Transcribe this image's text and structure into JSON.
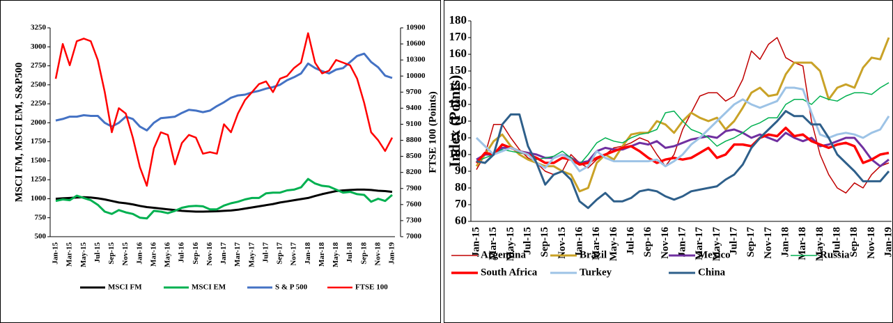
{
  "chart_data": [
    {
      "type": "line",
      "y_label": "MSCI FM, MSCI EM, S&P500",
      "y2_label": "FTSE 100 (Points)",
      "categories": [
        "Jan-15",
        null,
        "Mar-15",
        null,
        "May-15",
        null,
        "Jul-15",
        null,
        "Sep-15",
        null,
        "Nov-15",
        null,
        "Jan-16",
        null,
        "Mar-16",
        null,
        "May-16",
        null,
        "Jul-16",
        null,
        "Sep-16",
        null,
        "Nov-16",
        null,
        "Jan-17",
        null,
        "Mar-17",
        null,
        "May-17",
        null,
        "Jul-17",
        null,
        "Sep-17",
        null,
        "Nov-17",
        null,
        "Jan-18",
        null,
        "Mar-18",
        null,
        "May-18",
        null,
        "Jul-18",
        null,
        "Sep-18",
        null,
        "Nov-18",
        null,
        "Jan-19"
      ],
      "ylim": [
        500,
        3250
      ],
      "yticks": [
        500,
        750,
        1000,
        1250,
        1500,
        1750,
        2000,
        2250,
        2500,
        2750,
        3000,
        3250
      ],
      "y2lim": [
        7000,
        10900
      ],
      "y2ticks": [
        7000,
        7300,
        7600,
        7900,
        8200,
        8500,
        8800,
        9100,
        9400,
        9700,
        10000,
        10300,
        10600,
        10900
      ],
      "legend": "bottom",
      "series": [
        {
          "name": "MSCI FM",
          "color": "#000000",
          "values": [
            1000,
            1005,
            1010,
            1015,
            1020,
            1015,
            1005,
            990,
            970,
            950,
            940,
            925,
            905,
            890,
            880,
            870,
            860,
            850,
            840,
            835,
            830,
            830,
            832,
            835,
            840,
            845,
            855,
            870,
            885,
            900,
            915,
            930,
            950,
            965,
            980,
            995,
            1010,
            1035,
            1060,
            1080,
            1100,
            1110,
            1115,
            1120,
            1120,
            1115,
            1105,
            1100,
            1090
          ]
        },
        {
          "name": "MSCI EM",
          "color": "#00b050",
          "values": [
            970,
            990,
            980,
            1040,
            1010,
            980,
            920,
            830,
            800,
            850,
            820,
            800,
            750,
            740,
            840,
            830,
            810,
            840,
            880,
            900,
            905,
            900,
            860,
            860,
            910,
            940,
            960,
            990,
            1010,
            1010,
            1070,
            1080,
            1080,
            1110,
            1120,
            1150,
            1260,
            1200,
            1170,
            1160,
            1120,
            1080,
            1090,
            1060,
            1050,
            960,
            1000,
            970,
            1050
          ]
        },
        {
          "name": "S & P 500",
          "color": "#4472c4",
          "values": [
            2030,
            2050,
            2080,
            2080,
            2100,
            2090,
            2090,
            2000,
            1950,
            2000,
            2080,
            2050,
            1950,
            1900,
            2000,
            2060,
            2070,
            2080,
            2130,
            2170,
            2160,
            2140,
            2160,
            2220,
            2270,
            2330,
            2360,
            2370,
            2400,
            2420,
            2450,
            2470,
            2500,
            2560,
            2600,
            2650,
            2780,
            2720,
            2680,
            2650,
            2700,
            2720,
            2800,
            2880,
            2910,
            2800,
            2730,
            2620,
            2590
          ]
        },
        {
          "name": "FTSE 100",
          "color": "#ff0000",
          "axis": "y2",
          "values": [
            9950,
            10600,
            10200,
            10650,
            10700,
            10650,
            10300,
            9700,
            8950,
            9400,
            9300,
            8850,
            8300,
            7950,
            8650,
            8950,
            8900,
            8350,
            8750,
            8900,
            8850,
            8550,
            8580,
            8550,
            9100,
            8950,
            9300,
            9550,
            9700,
            9850,
            9900,
            9700,
            9950,
            10000,
            10150,
            10250,
            10800,
            10250,
            10050,
            10100,
            10300,
            10250,
            10200,
            9950,
            9500,
            8950,
            8800,
            8600,
            8850
          ]
        }
      ]
    },
    {
      "type": "line",
      "y_label": "Index (Points)",
      "categories": [
        "Jan-15",
        null,
        "Mar-15",
        null,
        "May-15",
        null,
        "Jul-15",
        null,
        "Sep-15",
        null,
        "Nov-15",
        null,
        "Jan-16",
        null,
        "Mar-16",
        null,
        "May-16",
        null,
        "Jul-16",
        null,
        "Sep-16",
        null,
        "Nov-16",
        null,
        "Jan-17",
        null,
        "Mar-17",
        null,
        "May-17",
        null,
        "Jul-17",
        null,
        "Sep-17",
        null,
        "Nov-17",
        null,
        "Jan-18",
        null,
        "Mar-18",
        null,
        "May-18",
        null,
        "Jul-18",
        null,
        "Sep-18",
        null,
        "Nov-18",
        null,
        "Jan-19"
      ],
      "ylim": [
        60,
        180
      ],
      "yticks": [
        60,
        70,
        80,
        90,
        100,
        110,
        120,
        130,
        140,
        150,
        160,
        170,
        180
      ],
      "legend": "bottom",
      "series": [
        {
          "name": "Argentina",
          "color": "#c00000",
          "values": [
            91,
            100,
            118,
            118,
            110,
            103,
            98,
            95,
            90,
            88,
            90,
            100,
            95,
            92,
            97,
            100,
            104,
            105,
            107,
            110,
            108,
            100,
            93,
            100,
            115,
            125,
            135,
            137,
            137,
            132,
            135,
            145,
            162,
            157,
            166,
            170,
            158,
            155,
            153,
            120,
            100,
            88,
            80,
            77,
            83,
            80,
            88,
            93,
            95
          ]
        },
        {
          "name": "Brazil",
          "color": "#c9a227",
          "values": [
            93,
            100,
            108,
            112,
            105,
            100,
            97,
            95,
            93,
            93,
            90,
            88,
            78,
            80,
            95,
            100,
            97,
            105,
            112,
            113,
            113,
            120,
            118,
            113,
            120,
            125,
            122,
            120,
            122,
            115,
            120,
            128,
            137,
            140,
            135,
            136,
            148,
            155,
            155,
            155,
            150,
            133,
            140,
            142,
            140,
            152,
            158,
            157,
            170
          ]
        },
        {
          "name": "Mexico",
          "color": "#7030a0",
          "values": [
            97,
            100,
            100,
            104,
            104,
            102,
            101,
            100,
            98,
            98,
            100,
            98,
            95,
            96,
            102,
            104,
            103,
            103,
            105,
            107,
            106,
            108,
            104,
            105,
            107,
            109,
            110,
            111,
            110,
            114,
            115,
            113,
            110,
            112,
            110,
            108,
            113,
            110,
            108,
            110,
            105,
            106,
            108,
            110,
            110,
            104,
            97,
            93,
            97
          ]
        },
        {
          "name": "Russia",
          "color": "#00b050",
          "values": [
            96,
            98,
            100,
            103,
            102,
            101,
            100,
            97,
            98,
            99,
            102,
            98,
            94,
            100,
            107,
            110,
            108,
            107,
            110,
            112,
            113,
            115,
            125,
            126,
            120,
            115,
            113,
            110,
            105,
            108,
            110,
            113,
            117,
            119,
            122,
            122,
            130,
            133,
            133,
            130,
            135,
            133,
            132,
            135,
            137,
            137,
            136,
            140,
            143
          ]
        },
        {
          "name": "South Africa",
          "color": "#ff0000",
          "values": [
            95,
            101,
            100,
            106,
            104,
            102,
            100,
            98,
            95,
            95,
            98,
            97,
            94,
            95,
            98,
            100,
            102,
            104,
            105,
            102,
            98,
            95,
            97,
            98,
            97,
            98,
            101,
            104,
            98,
            100,
            106,
            106,
            105,
            110,
            112,
            111,
            116,
            111,
            112,
            108,
            106,
            104,
            106,
            107,
            105,
            95,
            97,
            100,
            101
          ]
        },
        {
          "name": "Turkey",
          "color": "#9dc3e6",
          "values": [
            110,
            105,
            100,
            102,
            104,
            102,
            100,
            95,
            92,
            98,
            100,
            97,
            90,
            93,
            102,
            98,
            96,
            96,
            96,
            96,
            96,
            97,
            93,
            96,
            100,
            106,
            110,
            115,
            120,
            125,
            130,
            133,
            130,
            128,
            130,
            132,
            140,
            140,
            139,
            125,
            112,
            110,
            112,
            113,
            112,
            110,
            113,
            115,
            123
          ]
        },
        {
          "name": "China",
          "color": "#2e5f8a",
          "values": [
            96,
            95,
            100,
            118,
            124,
            124,
            105,
            95,
            82,
            88,
            90,
            85,
            72,
            68,
            73,
            77,
            72,
            72,
            74,
            78,
            79,
            78,
            75,
            73,
            75,
            78,
            79,
            80,
            81,
            85,
            88,
            94,
            104,
            110,
            115,
            120,
            126,
            123,
            123,
            118,
            118,
            110,
            100,
            95,
            90,
            84,
            84,
            84,
            90
          ]
        }
      ]
    }
  ]
}
